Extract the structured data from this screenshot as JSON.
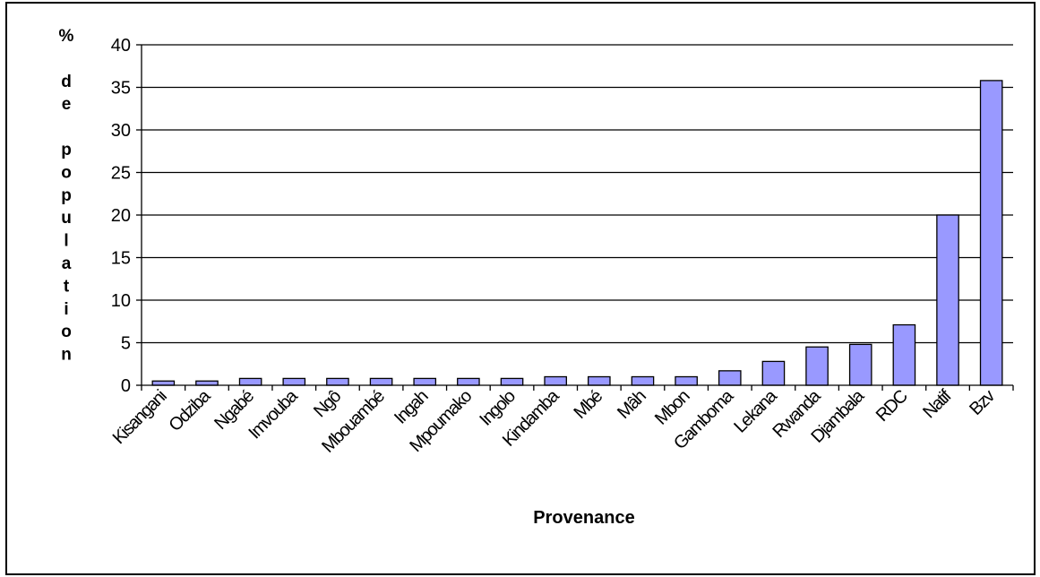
{
  "chart_data": {
    "type": "bar",
    "title": "",
    "xlabel": "Provenance",
    "ylabel": "% de population",
    "ylabel_lines": [
      "%",
      "",
      "d",
      "e",
      "",
      "p",
      "o",
      "p",
      "u",
      "l",
      "a",
      "t",
      "i",
      "o",
      "n"
    ],
    "ylim": [
      0,
      40
    ],
    "yticks": [
      0,
      5,
      10,
      15,
      20,
      25,
      30,
      35,
      40
    ],
    "grid": true,
    "legend": "none",
    "bar_color": "#9999ff",
    "categories": [
      "Kisangani",
      "Odziba",
      "Ngabé",
      "Imvouba",
      "Ngô",
      "Mbouambé",
      "Ingah",
      "Mpoumako",
      "Ingolo",
      "Kindamba",
      "Mbé",
      "Mâh",
      "Mbon",
      "Gamboma",
      "Lekana",
      "Rwanda",
      "Djambala",
      "RDC",
      "Natif",
      "Bzv"
    ],
    "values": [
      0.5,
      0.5,
      0.8,
      0.8,
      0.8,
      0.8,
      0.8,
      0.8,
      0.8,
      1.0,
      1.0,
      1.0,
      1.0,
      1.7,
      2.8,
      4.5,
      4.8,
      7.1,
      20.0,
      35.8
    ]
  }
}
